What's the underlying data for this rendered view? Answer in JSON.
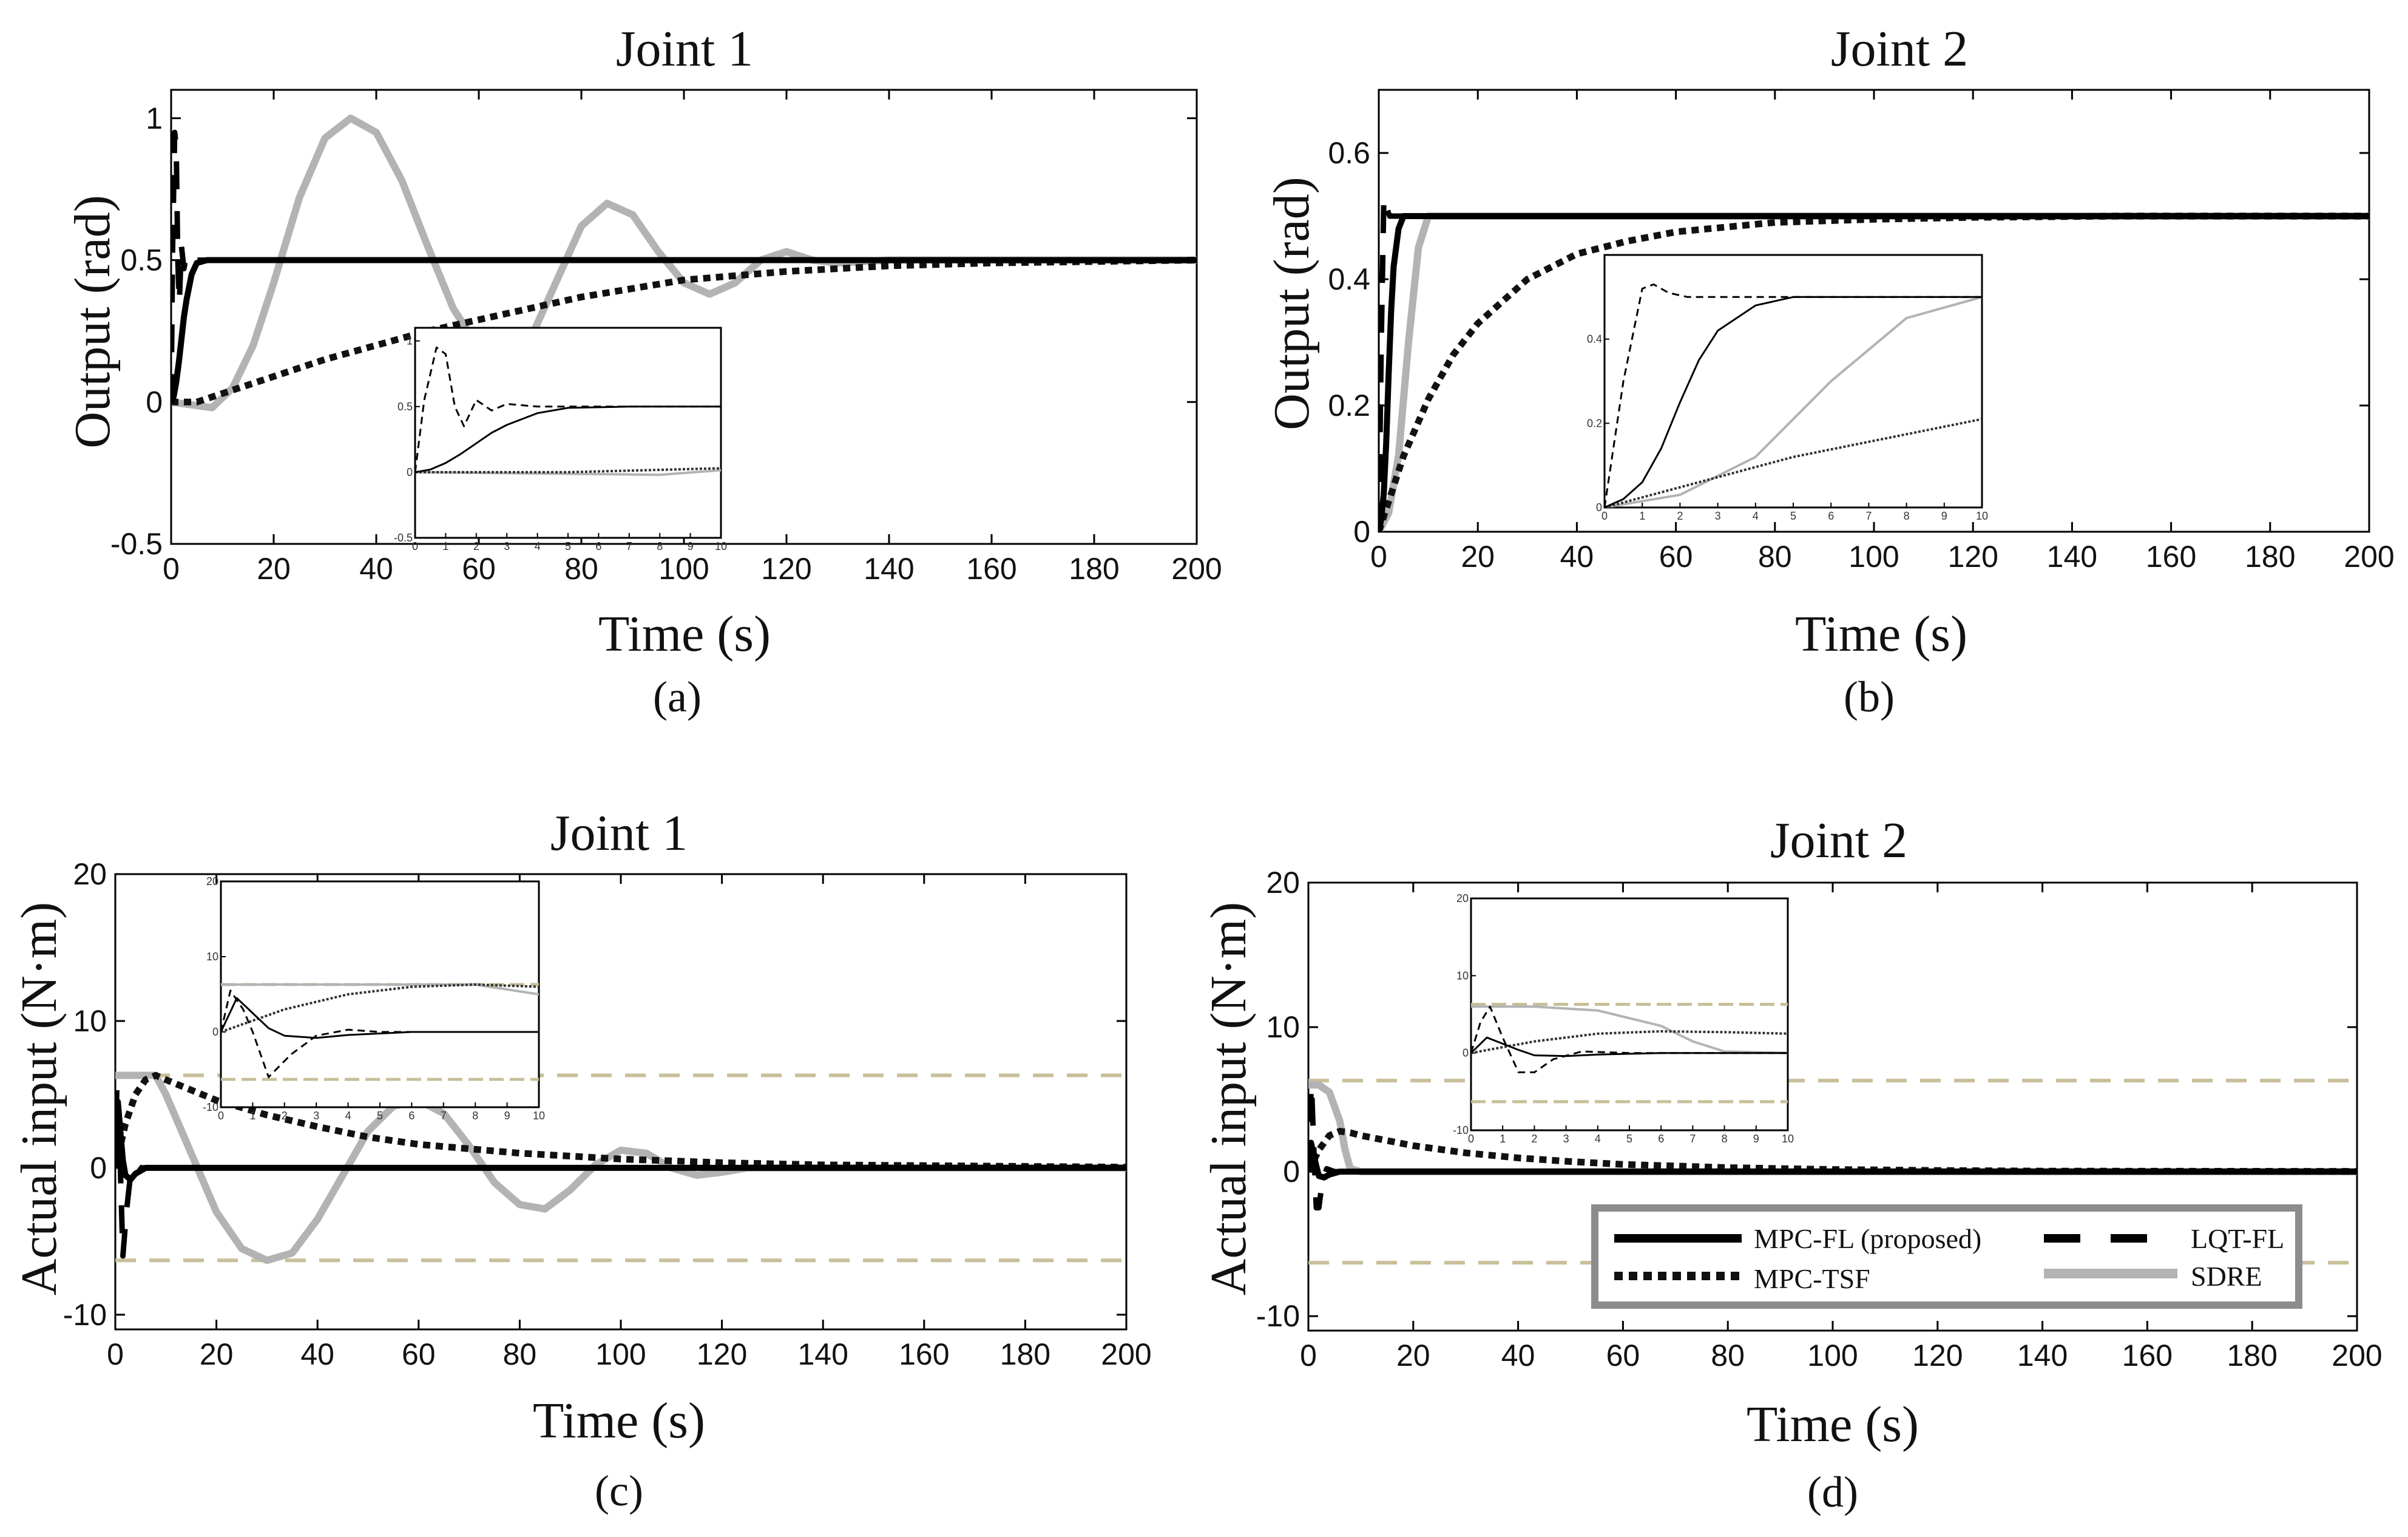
{
  "figure": {
    "legend": [
      "MPC-FL (proposed)",
      "LQT-FL",
      "MPC-TSF",
      "SDRE"
    ]
  },
  "colors": {
    "mpc_fl": "#000000",
    "lqt_fl": "#000000",
    "mpc_tsf": "#111111",
    "sdre": "#b3b3b3",
    "limit": "#c8bf9a"
  },
  "chart_data": [
    {
      "type": "line",
      "panel": "a",
      "title": "Joint 1",
      "xlabel": "Time (s)",
      "ylabel": "Output (rad)",
      "caption": "(a)",
      "xlim": [
        0,
        200
      ],
      "ylim": [
        -0.5,
        1.1
      ],
      "xticks": [
        0,
        20,
        40,
        60,
        80,
        100,
        120,
        140,
        160,
        180,
        200
      ],
      "yticks": [
        -0.5,
        0,
        0.5,
        1
      ],
      "series": [
        {
          "name": "MPC-FL (proposed)",
          "x": [
            0,
            0.5,
            1,
            1.5,
            2,
            2.5,
            3,
            4,
            5,
            7,
            10,
            200
          ],
          "y": [
            0,
            0.02,
            0.07,
            0.14,
            0.22,
            0.3,
            0.36,
            0.45,
            0.49,
            0.5,
            0.5,
            0.5
          ]
        },
        {
          "name": "LQT-FL",
          "x": [
            0,
            0.3,
            0.7,
            1.0,
            1.3,
            1.6,
            2.0,
            2.5,
            3.0,
            4.0,
            6,
            200
          ],
          "y": [
            0,
            0.55,
            0.95,
            0.9,
            0.5,
            0.35,
            0.55,
            0.47,
            0.52,
            0.5,
            0.5,
            0.5
          ]
        },
        {
          "name": "MPC-TSF",
          "x": [
            0,
            5,
            10,
            20,
            30,
            40,
            50,
            60,
            70,
            80,
            100,
            120,
            140,
            160,
            200
          ],
          "y": [
            0,
            0.0,
            0.03,
            0.09,
            0.15,
            0.2,
            0.25,
            0.29,
            0.33,
            0.37,
            0.43,
            0.46,
            0.48,
            0.49,
            0.5
          ]
        },
        {
          "name": "SDRE",
          "x": [
            0,
            4,
            8,
            12,
            16,
            20,
            25,
            30,
            35,
            40,
            45,
            50,
            55,
            60,
            65,
            70,
            75,
            80,
            85,
            90,
            95,
            100,
            105,
            110,
            115,
            120,
            125,
            130,
            140,
            200
          ],
          "y": [
            0,
            -0.01,
            -0.02,
            0.05,
            0.2,
            0.42,
            0.72,
            0.93,
            1.0,
            0.95,
            0.78,
            0.55,
            0.33,
            0.19,
            0.15,
            0.22,
            0.42,
            0.62,
            0.7,
            0.66,
            0.53,
            0.42,
            0.38,
            0.42,
            0.5,
            0.53,
            0.5,
            0.49,
            0.5,
            0.5
          ]
        }
      ],
      "inset": {
        "xlim": [
          0,
          10
        ],
        "ylim": [
          -0.5,
          1.1
        ],
        "xticks": [
          0,
          1,
          2,
          3,
          4,
          5,
          6,
          7,
          8,
          9,
          10
        ],
        "yticks": [
          -0.5,
          0,
          0.5,
          1
        ],
        "ytick_labels": [
          "-0.5",
          "0",
          "0.5",
          "1"
        ]
      }
    },
    {
      "type": "line",
      "panel": "b",
      "title": "Joint 2",
      "xlabel": "Time (s)",
      "ylabel": "Output (rad)",
      "caption": "(b)",
      "xlim": [
        0,
        200
      ],
      "ylim": [
        0,
        0.7
      ],
      "xticks": [
        0,
        20,
        40,
        60,
        80,
        100,
        120,
        140,
        160,
        180,
        200
      ],
      "yticks": [
        0,
        0.2,
        0.4,
        0.6
      ],
      "series": [
        {
          "name": "MPC-FL (proposed)",
          "x": [
            0,
            0.5,
            1,
            1.5,
            2,
            2.5,
            3,
            4,
            5,
            7,
            200
          ],
          "y": [
            0,
            0.02,
            0.06,
            0.14,
            0.25,
            0.35,
            0.42,
            0.48,
            0.5,
            0.5,
            0.5
          ]
        },
        {
          "name": "LQT-FL",
          "x": [
            0,
            0.5,
            1,
            1.3,
            1.7,
            2.2,
            3,
            4,
            200
          ],
          "y": [
            0,
            0.3,
            0.52,
            0.53,
            0.51,
            0.5,
            0.5,
            0.5,
            0.5
          ]
        },
        {
          "name": "MPC-TSF",
          "x": [
            0,
            5,
            10,
            15,
            20,
            30,
            40,
            50,
            60,
            80,
            100,
            120,
            150,
            200
          ],
          "y": [
            0,
            0.12,
            0.21,
            0.28,
            0.33,
            0.4,
            0.44,
            0.46,
            0.475,
            0.49,
            0.495,
            0.498,
            0.5,
            0.5
          ]
        },
        {
          "name": "SDRE",
          "x": [
            0,
            2,
            4,
            6,
            8,
            10,
            12,
            200
          ],
          "y": [
            0,
            0.03,
            0.12,
            0.3,
            0.45,
            0.5,
            0.5,
            0.5
          ]
        }
      ],
      "inset": {
        "xlim": [
          0,
          10
        ],
        "ylim": [
          0,
          0.6
        ],
        "xticks": [
          0,
          1,
          2,
          3,
          4,
          5,
          6,
          7,
          8,
          9,
          10
        ],
        "yticks": [
          0,
          0.2,
          0.4
        ],
        "ytick_labels": [
          "0",
          "0.2",
          "0.4"
        ]
      }
    },
    {
      "type": "line",
      "panel": "c",
      "title": "Joint 1",
      "xlabel": "Time (s)",
      "ylabel": "Actual input (N·m)",
      "caption": "(c)",
      "xlim": [
        0,
        200
      ],
      "ylim": [
        -11,
        20
      ],
      "xticks": [
        0,
        20,
        40,
        60,
        80,
        100,
        120,
        140,
        160,
        180,
        200
      ],
      "yticks": [
        -10,
        0,
        10,
        20
      ],
      "limits": [
        6.3,
        -6.3
      ],
      "series": [
        {
          "name": "MPC-FL (proposed)",
          "x": [
            0,
            0.5,
            1,
            1.5,
            2,
            3,
            4,
            6,
            8,
            200
          ],
          "y": [
            0,
            4.5,
            2.5,
            0.5,
            -0.5,
            -0.8,
            -0.4,
            0,
            0,
            0
          ]
        },
        {
          "name": "LQT-FL",
          "x": [
            0,
            0.3,
            0.7,
            1.0,
            1.5,
            2.2,
            3,
            4,
            5,
            200
          ],
          "y": [
            0,
            5.5,
            3,
            0,
            -6,
            -3,
            -0.5,
            0.3,
            0,
            0
          ]
        },
        {
          "name": "MPC-TSF",
          "x": [
            0,
            2,
            4,
            6,
            8,
            10,
            20,
            30,
            40,
            50,
            60,
            80,
            100,
            120,
            140,
            200
          ],
          "y": [
            0,
            3,
            5,
            6,
            6.3,
            6,
            4.6,
            3.6,
            2.8,
            2.1,
            1.6,
            1.0,
            0.6,
            0.35,
            0.2,
            0.05
          ]
        },
        {
          "name": "SDRE",
          "x": [
            0,
            2,
            4,
            6,
            8,
            10,
            15,
            20,
            25,
            30,
            35,
            40,
            45,
            50,
            55,
            60,
            65,
            70,
            75,
            80,
            85,
            90,
            95,
            100,
            105,
            110,
            115,
            120,
            125,
            200
          ],
          "y": [
            6.3,
            6.3,
            6.3,
            6.3,
            6.3,
            5,
            1,
            -3,
            -5.5,
            -6.3,
            -5.8,
            -3.5,
            -0.5,
            2.5,
            4.2,
            4.6,
            3.7,
            1.5,
            -1,
            -2.5,
            -2.8,
            -1.5,
            0.2,
            1.2,
            1,
            0,
            -0.5,
            -0.3,
            0,
            0
          ]
        }
      ],
      "inset": {
        "xlim": [
          0,
          10
        ],
        "ylim": [
          -10,
          20
        ],
        "xticks": [
          0,
          1,
          2,
          3,
          4,
          5,
          6,
          7,
          8,
          9,
          10
        ],
        "yticks": [
          -10,
          0,
          10,
          20
        ],
        "ytick_labels": [
          "-10",
          "0",
          "10",
          "20"
        ]
      }
    },
    {
      "type": "line",
      "panel": "d",
      "title": "Joint 2",
      "xlabel": "Time (s)",
      "ylabel": "Actual input (N·m)",
      "caption": "(d)",
      "xlim": [
        0,
        200
      ],
      "ylim": [
        -11,
        20
      ],
      "xticks": [
        0,
        20,
        40,
        60,
        80,
        100,
        120,
        140,
        160,
        180,
        200
      ],
      "yticks": [
        -10,
        0,
        10,
        20
      ],
      "limits": [
        6.3,
        -6.3
      ],
      "series": [
        {
          "name": "MPC-FL (proposed)",
          "x": [
            0,
            0.5,
            1,
            1.5,
            2,
            3,
            4,
            6,
            200
          ],
          "y": [
            0,
            2,
            1.2,
            0.4,
            -0.3,
            -0.4,
            -0.2,
            0,
            0
          ]
        },
        {
          "name": "LQT-FL",
          "x": [
            0,
            0.3,
            0.6,
            1.0,
            1.5,
            2.0,
            2.6,
            3.5,
            5,
            200
          ],
          "y": [
            0,
            4,
            6,
            2,
            -2.5,
            -2.5,
            -0.8,
            0.2,
            0,
            0
          ]
        },
        {
          "name": "MPC-TSF",
          "x": [
            0,
            2,
            4,
            6,
            8,
            10,
            20,
            30,
            40,
            50,
            60,
            80,
            100,
            120,
            140,
            200
          ],
          "y": [
            0,
            1.5,
            2.5,
            2.8,
            2.7,
            2.5,
            1.8,
            1.3,
            0.95,
            0.7,
            0.5,
            0.28,
            0.15,
            0.08,
            0.04,
            0.02
          ]
        },
        {
          "name": "SDRE",
          "x": [
            0,
            2,
            4,
            6,
            7,
            8,
            10,
            200
          ],
          "y": [
            6,
            6,
            5.5,
            3.5,
            1.5,
            0.2,
            0,
            0
          ]
        }
      ],
      "inset": {
        "xlim": [
          0,
          10
        ],
        "ylim": [
          -10,
          20
        ],
        "xticks": [
          0,
          1,
          2,
          3,
          4,
          5,
          6,
          7,
          8,
          9,
          10
        ],
        "yticks": [
          -10,
          0,
          10,
          20
        ],
        "ytick_labels": [
          "-10",
          "0",
          "10",
          "20"
        ]
      }
    }
  ]
}
